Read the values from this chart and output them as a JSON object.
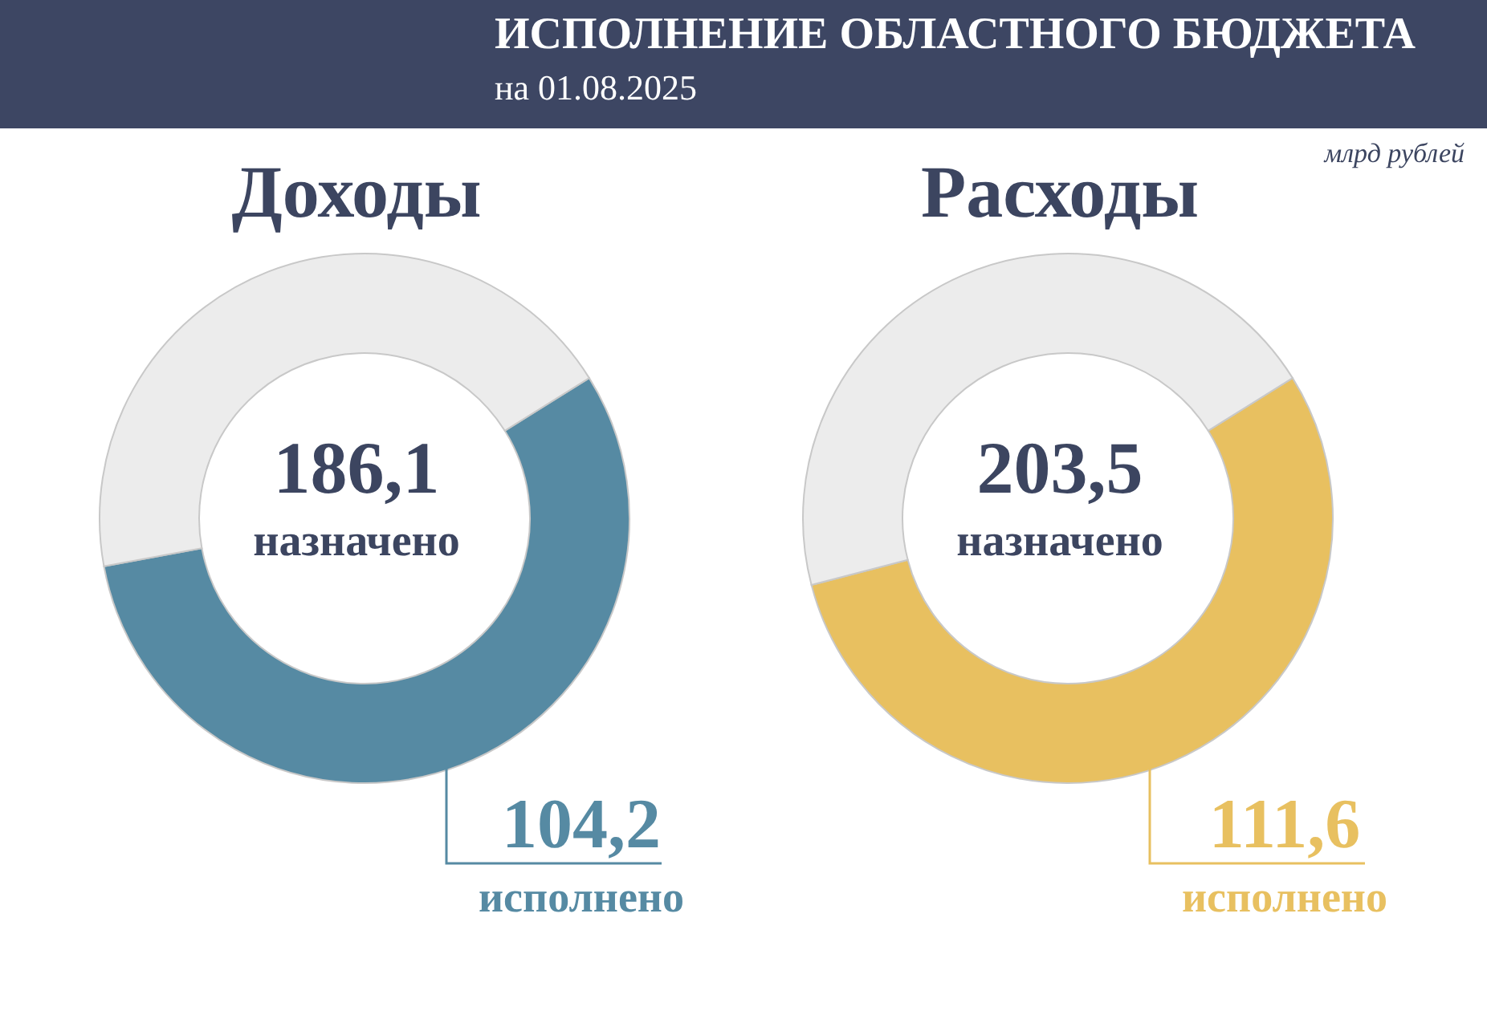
{
  "chart_data": [
    {
      "type": "other",
      "title": "ИСПОЛНЕНИЕ ОБЛАСТНОГО БЮДЖЕТА",
      "subtitle": "на 01.08.2025",
      "annotations": [
        "млрд рублей"
      ]
    },
    {
      "type": "donut",
      "title": "Доходы",
      "categories": [
        "исполнено",
        null
      ],
      "values": [
        104.2,
        81.9
      ],
      "colors": [
        "#568aa3",
        "#ececec"
      ],
      "value_labels": [
        "104,2",
        null
      ],
      "annotations": [
        "186,1",
        "назначено"
      ]
    },
    {
      "type": "donut",
      "title": "Расходы",
      "categories": [
        "исполнено",
        null
      ],
      "values": [
        111.6,
        91.9
      ],
      "colors": [
        "#e8c060",
        "#ececec"
      ],
      "value_labels": [
        "111,6",
        null
      ],
      "annotations": [
        "203,5",
        "назначено"
      ]
    }
  ]
}
